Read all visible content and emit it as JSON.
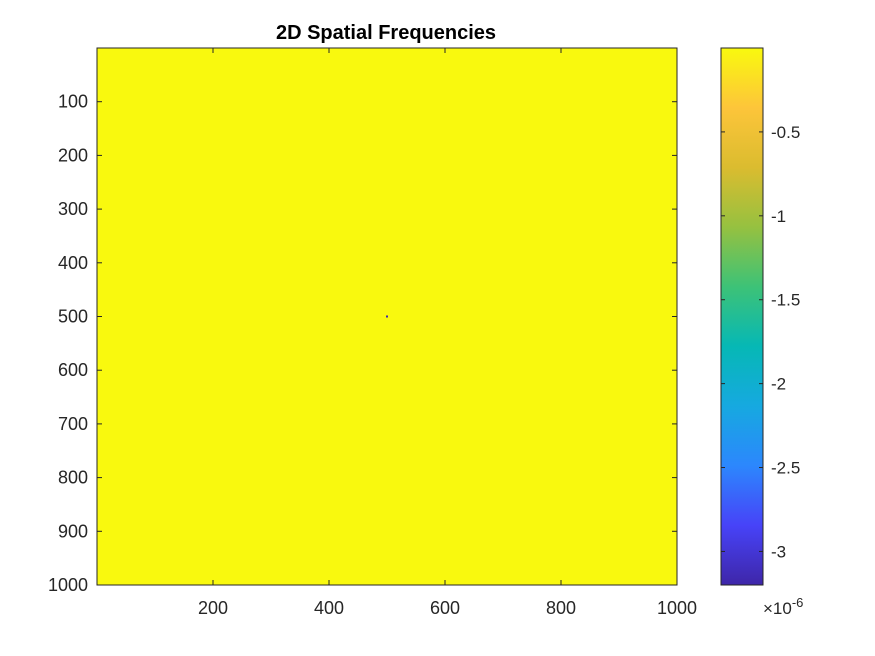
{
  "chart_data": {
    "type": "heatmap",
    "title": "2D Spatial Frequencies",
    "xlabel": "",
    "ylabel": "",
    "xlim": [
      0,
      1000
    ],
    "ylim": [
      0,
      1000
    ],
    "y_reversed": true,
    "x_ticks": [
      "200",
      "400",
      "600",
      "800",
      "1000"
    ],
    "x_tick_values": [
      200,
      400,
      600,
      800,
      1000
    ],
    "y_ticks": [
      "100",
      "200",
      "300",
      "400",
      "500",
      "600",
      "700",
      "800",
      "900",
      "1000"
    ],
    "y_tick_values": [
      100,
      200,
      300,
      400,
      500,
      600,
      700,
      800,
      900,
      1000
    ],
    "background_value": 0,
    "background_color": "#f9f90e",
    "points": [
      {
        "x": 500,
        "y": 500,
        "value": -3.2e-06,
        "color": "#3e26a8"
      }
    ],
    "colorbar": {
      "range": [
        -3.2e-06,
        0
      ],
      "ticks": [
        "-0.5",
        "-1",
        "-1.5",
        "-2",
        "-2.5",
        "-3"
      ],
      "tick_values": [
        -0.5,
        -1,
        -1.5,
        -2,
        -2.5,
        -3
      ],
      "exponent_label": "×10",
      "exponent": "-6",
      "colormap": "parula",
      "colormap_stops": [
        "#3e26a8",
        "#4743f8",
        "#2c87fd",
        "#16a9e0",
        "#06b8b5",
        "#3dc277",
        "#96c140",
        "#dbbc2f",
        "#fdc53a",
        "#f9f90e"
      ]
    },
    "grid": false
  }
}
